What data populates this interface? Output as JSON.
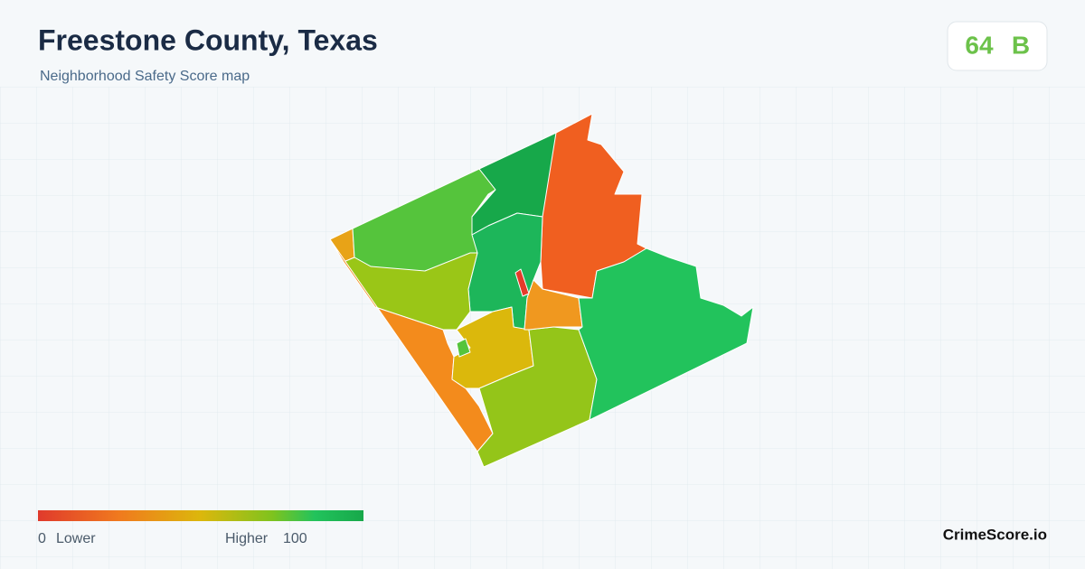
{
  "header": {
    "title": "Freestone County, Texas",
    "subtitle": "Neighborhood Safety Score map"
  },
  "score": {
    "value": "64",
    "grade": "B"
  },
  "legend": {
    "min": "0",
    "min_label": "Lower",
    "max_label": "Higher",
    "max": "100"
  },
  "brand": "CrimeScore.io"
}
